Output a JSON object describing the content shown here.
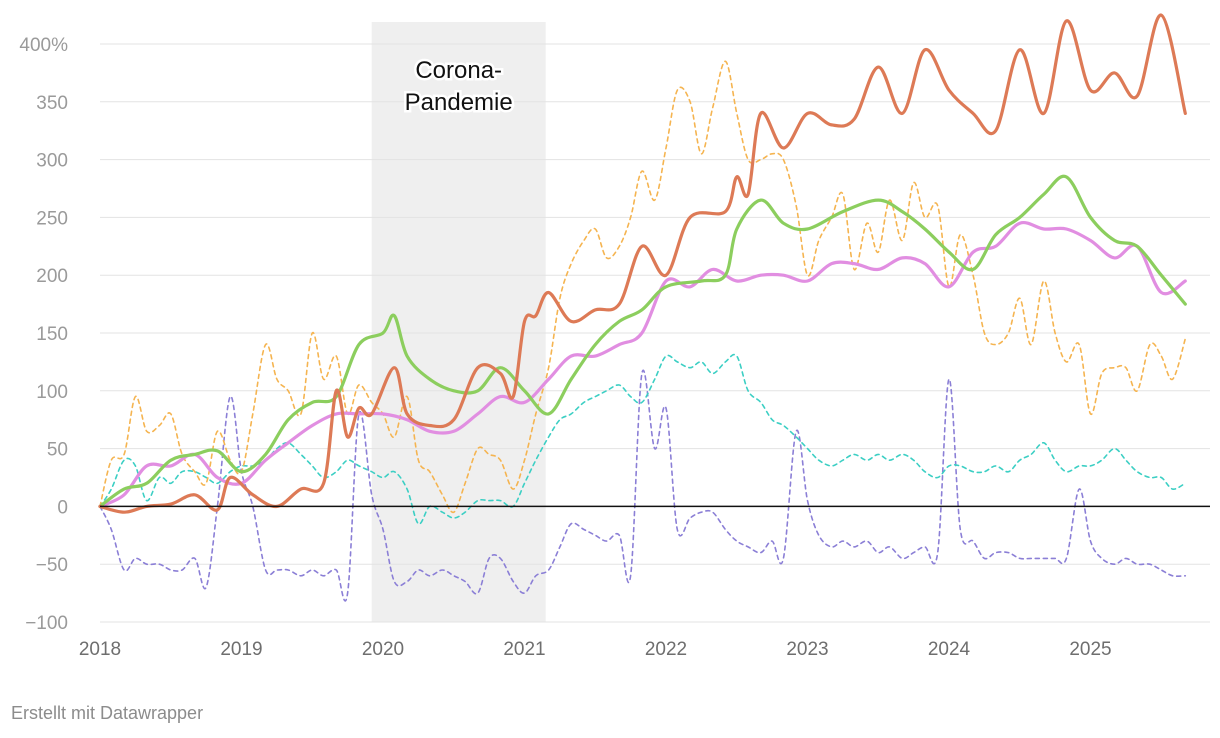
{
  "chart_data": {
    "type": "line",
    "title": "",
    "xlabel": "",
    "ylabel": "",
    "ylim": [
      -100,
      400
    ],
    "xlim": [
      2018,
      2025.75
    ],
    "y_ticks": [
      -100,
      -50,
      0,
      50,
      100,
      150,
      200,
      250,
      300,
      350,
      400
    ],
    "y_tick_labels": [
      "−100",
      "−50",
      "0",
      "50",
      "100",
      "150",
      "200",
      "250",
      "300",
      "350",
      "400%"
    ],
    "x_ticks": [
      2018,
      2019,
      2020,
      2021,
      2022,
      2023,
      2024,
      2025
    ],
    "x_tick_labels": [
      "2018",
      "2019",
      "2020",
      "2021",
      "2022",
      "2023",
      "2024",
      "2025"
    ],
    "shaded_region": {
      "from": 2019.92,
      "to": 2021.15,
      "label_lines": [
        "Corona-",
        "Pandemie"
      ],
      "color": "#efefef"
    },
    "series": [
      {
        "name": "orange-solid",
        "color": "#dd7a56",
        "style": "solid",
        "x": [
          2018,
          2018.17,
          2018.33,
          2018.5,
          2018.67,
          2018.83,
          2018.92,
          2019.08,
          2019.25,
          2019.42,
          2019.58,
          2019.67,
          2019.75,
          2019.83,
          2019.92,
          2020.08,
          2020.17,
          2020.33,
          2020.5,
          2020.67,
          2020.83,
          2020.92,
          2021.0,
          2021.08,
          2021.17,
          2021.33,
          2021.5,
          2021.67,
          2021.83,
          2022.0,
          2022.17,
          2022.42,
          2022.5,
          2022.58,
          2022.67,
          2022.83,
          2023.0,
          2023.17,
          2023.33,
          2023.5,
          2023.67,
          2023.83,
          2024.0,
          2024.17,
          2024.33,
          2024.5,
          2024.67,
          2024.83,
          2025.0,
          2025.17,
          2025.33,
          2025.5,
          2025.67
        ],
        "values": [
          0,
          -5,
          0,
          2,
          10,
          -3,
          25,
          10,
          0,
          15,
          20,
          100,
          60,
          85,
          80,
          120,
          80,
          70,
          75,
          120,
          115,
          95,
          160,
          165,
          185,
          160,
          170,
          175,
          225,
          200,
          250,
          255,
          285,
          270,
          340,
          310,
          340,
          330,
          335,
          380,
          340,
          395,
          360,
          340,
          325,
          395,
          340,
          420,
          360,
          375,
          355,
          425,
          340
        ]
      },
      {
        "name": "green-solid",
        "color": "#8cce5e",
        "style": "solid",
        "x": [
          2018,
          2018.17,
          2018.33,
          2018.5,
          2018.67,
          2018.83,
          2019.0,
          2019.17,
          2019.33,
          2019.5,
          2019.67,
          2019.83,
          2020.0,
          2020.08,
          2020.17,
          2020.33,
          2020.5,
          2020.67,
          2020.83,
          2021.0,
          2021.17,
          2021.33,
          2021.5,
          2021.67,
          2021.83,
          2022.0,
          2022.25,
          2022.42,
          2022.5,
          2022.67,
          2022.83,
          2023.0,
          2023.25,
          2023.5,
          2023.67,
          2023.83,
          2024.0,
          2024.17,
          2024.33,
          2024.5,
          2024.67,
          2024.83,
          2025.0,
          2025.17,
          2025.33,
          2025.5,
          2025.67
        ],
        "values": [
          0,
          15,
          20,
          40,
          45,
          48,
          30,
          45,
          75,
          90,
          95,
          140,
          150,
          165,
          130,
          110,
          100,
          100,
          120,
          100,
          80,
          110,
          140,
          160,
          170,
          190,
          195,
          200,
          240,
          265,
          245,
          240,
          255,
          265,
          255,
          240,
          220,
          205,
          235,
          250,
          270,
          285,
          250,
          230,
          225,
          200,
          175
        ]
      },
      {
        "name": "pink-solid",
        "color": "#e18ee1",
        "style": "solid",
        "x": [
          2018,
          2018.17,
          2018.33,
          2018.5,
          2018.67,
          2018.83,
          2019.0,
          2019.17,
          2019.33,
          2019.5,
          2019.67,
          2019.83,
          2020.0,
          2020.17,
          2020.33,
          2020.5,
          2020.67,
          2020.83,
          2021.0,
          2021.17,
          2021.33,
          2021.5,
          2021.67,
          2021.83,
          2022.0,
          2022.17,
          2022.33,
          2022.5,
          2022.67,
          2022.83,
          2023.0,
          2023.17,
          2023.33,
          2023.5,
          2023.67,
          2023.83,
          2024.0,
          2024.17,
          2024.33,
          2024.5,
          2024.67,
          2024.83,
          2025.0,
          2025.17,
          2025.33,
          2025.5,
          2025.67
        ],
        "values": [
          0,
          10,
          35,
          35,
          45,
          25,
          20,
          40,
          55,
          70,
          80,
          80,
          80,
          75,
          65,
          65,
          80,
          95,
          90,
          110,
          130,
          130,
          140,
          150,
          195,
          190,
          205,
          195,
          200,
          200,
          195,
          210,
          210,
          205,
          215,
          210,
          190,
          220,
          225,
          245,
          240,
          240,
          230,
          215,
          225,
          185,
          195
        ]
      },
      {
        "name": "yellow-dashed",
        "color": "#f5b450",
        "style": "dashed",
        "x": [
          2018,
          2018.08,
          2018.17,
          2018.25,
          2018.33,
          2018.42,
          2018.5,
          2018.58,
          2018.67,
          2018.75,
          2018.83,
          2018.92,
          2019.0,
          2019.08,
          2019.17,
          2019.25,
          2019.33,
          2019.42,
          2019.5,
          2019.58,
          2019.67,
          2019.75,
          2019.83,
          2019.92,
          2020.0,
          2020.08,
          2020.17,
          2020.25,
          2020.33,
          2020.42,
          2020.5,
          2020.58,
          2020.67,
          2020.75,
          2020.83,
          2020.92,
          2021.0,
          2021.08,
          2021.17,
          2021.25,
          2021.33,
          2021.42,
          2021.5,
          2021.58,
          2021.67,
          2021.75,
          2021.83,
          2021.92,
          2022.0,
          2022.08,
          2022.17,
          2022.25,
          2022.33,
          2022.42,
          2022.5,
          2022.58,
          2022.67,
          2022.75,
          2022.83,
          2022.92,
          2023.0,
          2023.08,
          2023.17,
          2023.25,
          2023.33,
          2023.42,
          2023.5,
          2023.58,
          2023.67,
          2023.75,
          2023.83,
          2023.92,
          2024.0,
          2024.08,
          2024.17,
          2024.25,
          2024.33,
          2024.42,
          2024.5,
          2024.58,
          2024.67,
          2024.75,
          2024.83,
          2024.92,
          2025.0,
          2025.08,
          2025.17,
          2025.25,
          2025.33,
          2025.42,
          2025.5,
          2025.58,
          2025.67
        ],
        "values": [
          0,
          40,
          45,
          95,
          65,
          70,
          80,
          45,
          30,
          20,
          65,
          40,
          30,
          80,
          140,
          110,
          100,
          80,
          150,
          110,
          130,
          80,
          105,
          90,
          80,
          60,
          95,
          40,
          30,
          10,
          -5,
          20,
          50,
          45,
          40,
          15,
          40,
          80,
          120,
          180,
          210,
          230,
          240,
          215,
          225,
          250,
          290,
          265,
          310,
          360,
          350,
          305,
          345,
          385,
          340,
          300,
          300,
          305,
          300,
          260,
          200,
          230,
          250,
          270,
          205,
          245,
          220,
          265,
          230,
          280,
          250,
          260,
          190,
          235,
          200,
          150,
          140,
          150,
          180,
          140,
          195,
          150,
          125,
          140,
          80,
          115,
          120,
          120,
          100,
          140,
          130,
          110,
          145
        ]
      },
      {
        "name": "teal-dashed",
        "color": "#3ccfc4",
        "style": "dashed",
        "x": [
          2018,
          2018.08,
          2018.17,
          2018.25,
          2018.33,
          2018.42,
          2018.5,
          2018.58,
          2018.67,
          2018.75,
          2018.83,
          2018.92,
          2019.0,
          2019.08,
          2019.17,
          2019.25,
          2019.33,
          2019.42,
          2019.5,
          2019.58,
          2019.67,
          2019.75,
          2019.83,
          2019.92,
          2020.0,
          2020.08,
          2020.17,
          2020.25,
          2020.33,
          2020.42,
          2020.5,
          2020.58,
          2020.67,
          2020.75,
          2020.83,
          2020.92,
          2021.0,
          2021.08,
          2021.17,
          2021.25,
          2021.33,
          2021.42,
          2021.5,
          2021.58,
          2021.67,
          2021.75,
          2021.83,
          2021.92,
          2022.0,
          2022.08,
          2022.17,
          2022.25,
          2022.33,
          2022.42,
          2022.5,
          2022.58,
          2022.67,
          2022.75,
          2022.83,
          2022.92,
          2023.0,
          2023.08,
          2023.17,
          2023.25,
          2023.33,
          2023.42,
          2023.5,
          2023.58,
          2023.67,
          2023.75,
          2023.83,
          2023.92,
          2024.0,
          2024.08,
          2024.17,
          2024.25,
          2024.33,
          2024.42,
          2024.5,
          2024.58,
          2024.67,
          2024.75,
          2024.83,
          2024.92,
          2025.0,
          2025.08,
          2025.17,
          2025.25,
          2025.33,
          2025.42,
          2025.5,
          2025.58,
          2025.67
        ],
        "values": [
          0,
          15,
          40,
          35,
          5,
          25,
          20,
          30,
          30,
          25,
          20,
          30,
          35,
          35,
          40,
          50,
          55,
          45,
          35,
          25,
          30,
          40,
          35,
          30,
          25,
          30,
          15,
          -15,
          0,
          -5,
          -10,
          -5,
          5,
          5,
          5,
          0,
          20,
          40,
          60,
          75,
          80,
          90,
          95,
          100,
          105,
          95,
          90,
          110,
          130,
          125,
          120,
          125,
          115,
          125,
          130,
          100,
          90,
          75,
          70,
          60,
          50,
          40,
          35,
          40,
          45,
          40,
          45,
          40,
          45,
          40,
          30,
          25,
          35,
          35,
          30,
          30,
          35,
          30,
          40,
          45,
          55,
          40,
          30,
          35,
          35,
          40,
          50,
          40,
          30,
          25,
          25,
          15,
          20
        ]
      },
      {
        "name": "purple-dashed",
        "color": "#8b7fd6",
        "style": "dashed",
        "x": [
          2018,
          2018.08,
          2018.17,
          2018.25,
          2018.33,
          2018.42,
          2018.5,
          2018.58,
          2018.67,
          2018.75,
          2018.83,
          2018.92,
          2019.0,
          2019.08,
          2019.17,
          2019.25,
          2019.33,
          2019.42,
          2019.5,
          2019.58,
          2019.67,
          2019.75,
          2019.83,
          2019.92,
          2020.0,
          2020.08,
          2020.17,
          2020.25,
          2020.33,
          2020.42,
          2020.5,
          2020.58,
          2020.67,
          2020.75,
          2020.83,
          2020.92,
          2021.0,
          2021.08,
          2021.17,
          2021.25,
          2021.33,
          2021.42,
          2021.5,
          2021.58,
          2021.67,
          2021.75,
          2021.83,
          2021.92,
          2022.0,
          2022.08,
          2022.17,
          2022.25,
          2022.33,
          2022.42,
          2022.5,
          2022.58,
          2022.67,
          2022.75,
          2022.83,
          2022.92,
          2023.0,
          2023.08,
          2023.17,
          2023.25,
          2023.33,
          2023.42,
          2023.5,
          2023.58,
          2023.67,
          2023.75,
          2023.83,
          2023.92,
          2024.0,
          2024.08,
          2024.17,
          2024.25,
          2024.33,
          2024.42,
          2024.5,
          2024.58,
          2024.67,
          2024.75,
          2024.83,
          2024.92,
          2025.0,
          2025.08,
          2025.17,
          2025.25,
          2025.33,
          2025.42,
          2025.5,
          2025.58,
          2025.67
        ],
        "values": [
          0,
          -20,
          -55,
          -45,
          -50,
          -50,
          -55,
          -55,
          -45,
          -70,
          0,
          95,
          30,
          0,
          -55,
          -55,
          -55,
          -60,
          -55,
          -60,
          -55,
          -75,
          80,
          10,
          -20,
          -65,
          -65,
          -55,
          -60,
          -55,
          -60,
          -65,
          -75,
          -45,
          -45,
          -65,
          -75,
          -60,
          -55,
          -35,
          -15,
          -20,
          -25,
          -30,
          -25,
          -60,
          115,
          50,
          85,
          -20,
          -10,
          -5,
          -5,
          -20,
          -30,
          -35,
          -40,
          -30,
          -45,
          65,
          5,
          -25,
          -35,
          -30,
          -35,
          -30,
          -40,
          -35,
          -45,
          -40,
          -35,
          -40,
          110,
          -20,
          -30,
          -45,
          -40,
          -40,
          -45,
          -45,
          -45,
          -45,
          -45,
          15,
          -30,
          -45,
          -50,
          -45,
          -50,
          -50,
          -55,
          -60,
          -60
        ]
      }
    ],
    "credit": "Erstellt mit Datawrapper"
  }
}
